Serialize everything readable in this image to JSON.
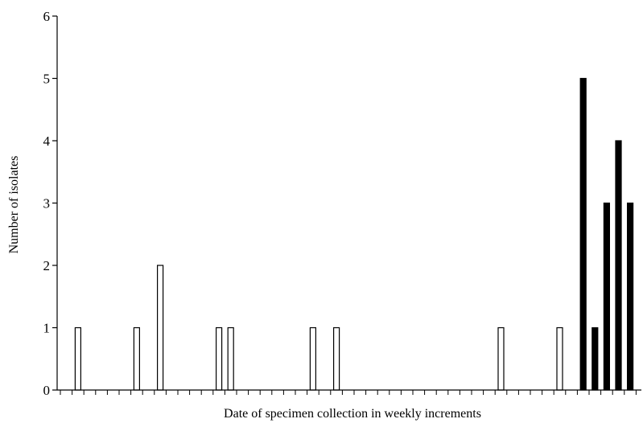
{
  "chart_data": {
    "type": "bar",
    "title": "",
    "xlabel": "Date of specimen collection in weekly increments",
    "ylabel": "Number of isolates",
    "ylim": [
      0,
      6
    ],
    "yticks": [
      "0",
      "1",
      "2",
      "3",
      "4",
      "5",
      "6"
    ],
    "grid": false,
    "legend": "none",
    "week_count": 50,
    "series": [
      {
        "fill": "#ffffff",
        "points": [
          {
            "week": 2,
            "value": 1
          },
          {
            "week": 7,
            "value": 1
          },
          {
            "week": 9,
            "value": 2
          },
          {
            "week": 14,
            "value": 1
          },
          {
            "week": 15,
            "value": 1
          },
          {
            "week": 22,
            "value": 1
          },
          {
            "week": 24,
            "value": 1
          },
          {
            "week": 38,
            "value": 1
          },
          {
            "week": 43,
            "value": 1
          }
        ]
      },
      {
        "fill": "#000000",
        "points": [
          {
            "week": 45,
            "value": 5
          },
          {
            "week": 46,
            "value": 1
          },
          {
            "week": 47,
            "value": 3
          },
          {
            "week": 48,
            "value": 4
          },
          {
            "week": 49,
            "value": 3
          }
        ]
      }
    ]
  }
}
